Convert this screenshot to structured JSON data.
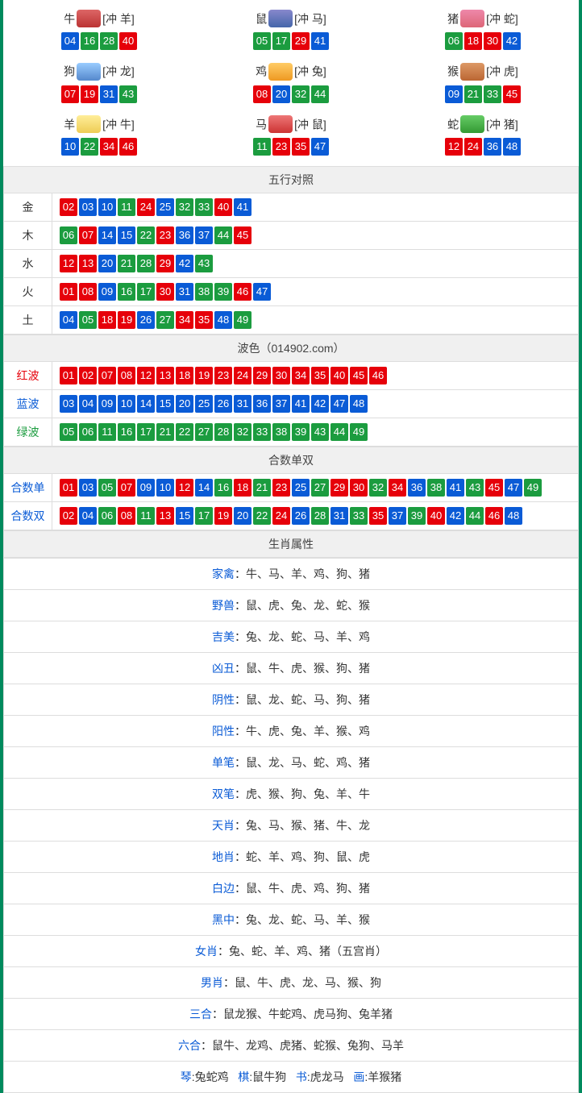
{
  "colors": {
    "accent_border": "#008a5d",
    "red_ball": "#e6000a",
    "blue_ball": "#0a5bd6",
    "green_ball": "#1b9c3f",
    "header_bg": "#f0f0f0",
    "border": "#dddddd",
    "text": "#333333",
    "link_blue": "#0a5bd6"
  },
  "zodiac": [
    {
      "name": "牛",
      "clash": "[冲 羊]",
      "icon_bg": "linear-gradient(#d66,#b33)",
      "balls": [
        [
          "04",
          "b"
        ],
        [
          "16",
          "g"
        ],
        [
          "28",
          "g"
        ],
        [
          "40",
          "r"
        ]
      ]
    },
    {
      "name": "鼠",
      "clash": "[冲 马]",
      "icon_bg": "linear-gradient(#88c,#46a)",
      "balls": [
        [
          "05",
          "g"
        ],
        [
          "17",
          "g"
        ],
        [
          "29",
          "r"
        ],
        [
          "41",
          "b"
        ]
      ]
    },
    {
      "name": "猪",
      "clash": "[冲 蛇]",
      "icon_bg": "linear-gradient(#e8a,#d67)",
      "balls": [
        [
          "06",
          "g"
        ],
        [
          "18",
          "r"
        ],
        [
          "30",
          "r"
        ],
        [
          "42",
          "b"
        ]
      ]
    },
    {
      "name": "狗",
      "clash": "[冲 龙]",
      "icon_bg": "linear-gradient(#9cf,#58c)",
      "balls": [
        [
          "07",
          "r"
        ],
        [
          "19",
          "r"
        ],
        [
          "31",
          "b"
        ],
        [
          "43",
          "g"
        ]
      ]
    },
    {
      "name": "鸡",
      "clash": "[冲 兔]",
      "icon_bg": "linear-gradient(#fc6,#e92)",
      "balls": [
        [
          "08",
          "r"
        ],
        [
          "20",
          "b"
        ],
        [
          "32",
          "g"
        ],
        [
          "44",
          "g"
        ]
      ]
    },
    {
      "name": "猴",
      "clash": "[冲 虎]",
      "icon_bg": "linear-gradient(#d96,#b63)",
      "balls": [
        [
          "09",
          "b"
        ],
        [
          "21",
          "g"
        ],
        [
          "33",
          "g"
        ],
        [
          "45",
          "r"
        ]
      ]
    },
    {
      "name": "羊",
      "clash": "[冲 牛]",
      "icon_bg": "linear-gradient(#fe9,#ec5)",
      "balls": [
        [
          "10",
          "b"
        ],
        [
          "22",
          "g"
        ],
        [
          "34",
          "r"
        ],
        [
          "46",
          "r"
        ]
      ]
    },
    {
      "name": "马",
      "clash": "[冲 鼠]",
      "icon_bg": "linear-gradient(#e77,#c33)",
      "balls": [
        [
          "11",
          "g"
        ],
        [
          "23",
          "r"
        ],
        [
          "35",
          "r"
        ],
        [
          "47",
          "b"
        ]
      ]
    },
    {
      "name": "蛇",
      "clash": "[冲 猪]",
      "icon_bg": "linear-gradient(#6c6,#393)",
      "balls": [
        [
          "12",
          "r"
        ],
        [
          "24",
          "r"
        ],
        [
          "36",
          "b"
        ],
        [
          "48",
          "b"
        ]
      ]
    }
  ],
  "wuxing": {
    "title": "五行对照",
    "rows": [
      {
        "label": "金",
        "label_class": "c-gold",
        "balls": [
          [
            "02",
            "r"
          ],
          [
            "03",
            "b"
          ],
          [
            "10",
            "b"
          ],
          [
            "11",
            "g"
          ],
          [
            "24",
            "r"
          ],
          [
            "25",
            "b"
          ],
          [
            "32",
            "g"
          ],
          [
            "33",
            "g"
          ],
          [
            "40",
            "r"
          ],
          [
            "41",
            "b"
          ]
        ]
      },
      {
        "label": "木",
        "label_class": "c-wood",
        "balls": [
          [
            "06",
            "g"
          ],
          [
            "07",
            "r"
          ],
          [
            "14",
            "b"
          ],
          [
            "15",
            "b"
          ],
          [
            "22",
            "g"
          ],
          [
            "23",
            "r"
          ],
          [
            "36",
            "b"
          ],
          [
            "37",
            "b"
          ],
          [
            "44",
            "g"
          ],
          [
            "45",
            "r"
          ]
        ]
      },
      {
        "label": "水",
        "label_class": "c-water",
        "balls": [
          [
            "12",
            "r"
          ],
          [
            "13",
            "r"
          ],
          [
            "20",
            "b"
          ],
          [
            "21",
            "g"
          ],
          [
            "28",
            "g"
          ],
          [
            "29",
            "r"
          ],
          [
            "42",
            "b"
          ],
          [
            "43",
            "g"
          ]
        ]
      },
      {
        "label": "火",
        "label_class": "c-fire",
        "balls": [
          [
            "01",
            "r"
          ],
          [
            "08",
            "r"
          ],
          [
            "09",
            "b"
          ],
          [
            "16",
            "g"
          ],
          [
            "17",
            "g"
          ],
          [
            "30",
            "r"
          ],
          [
            "31",
            "b"
          ],
          [
            "38",
            "g"
          ],
          [
            "39",
            "g"
          ],
          [
            "46",
            "r"
          ],
          [
            "47",
            "b"
          ]
        ]
      },
      {
        "label": "土",
        "label_class": "c-earth",
        "balls": [
          [
            "04",
            "b"
          ],
          [
            "05",
            "g"
          ],
          [
            "18",
            "r"
          ],
          [
            "19",
            "r"
          ],
          [
            "26",
            "b"
          ],
          [
            "27",
            "g"
          ],
          [
            "34",
            "r"
          ],
          [
            "35",
            "r"
          ],
          [
            "48",
            "b"
          ],
          [
            "49",
            "g"
          ]
        ]
      }
    ]
  },
  "bose": {
    "title": "波色（014902.com）",
    "rows": [
      {
        "label": "红波",
        "label_color": "#e6000a",
        "balls": [
          [
            "01",
            "r"
          ],
          [
            "02",
            "r"
          ],
          [
            "07",
            "r"
          ],
          [
            "08",
            "r"
          ],
          [
            "12",
            "r"
          ],
          [
            "13",
            "r"
          ],
          [
            "18",
            "r"
          ],
          [
            "19",
            "r"
          ],
          [
            "23",
            "r"
          ],
          [
            "24",
            "r"
          ],
          [
            "29",
            "r"
          ],
          [
            "30",
            "r"
          ],
          [
            "34",
            "r"
          ],
          [
            "35",
            "r"
          ],
          [
            "40",
            "r"
          ],
          [
            "45",
            "r"
          ],
          [
            "46",
            "r"
          ]
        ]
      },
      {
        "label": "蓝波",
        "label_color": "#0a5bd6",
        "balls": [
          [
            "03",
            "b"
          ],
          [
            "04",
            "b"
          ],
          [
            "09",
            "b"
          ],
          [
            "10",
            "b"
          ],
          [
            "14",
            "b"
          ],
          [
            "15",
            "b"
          ],
          [
            "20",
            "b"
          ],
          [
            "25",
            "b"
          ],
          [
            "26",
            "b"
          ],
          [
            "31",
            "b"
          ],
          [
            "36",
            "b"
          ],
          [
            "37",
            "b"
          ],
          [
            "41",
            "b"
          ],
          [
            "42",
            "b"
          ],
          [
            "47",
            "b"
          ],
          [
            "48",
            "b"
          ]
        ]
      },
      {
        "label": "绿波",
        "label_color": "#1b9c3f",
        "balls": [
          [
            "05",
            "g"
          ],
          [
            "06",
            "g"
          ],
          [
            "11",
            "g"
          ],
          [
            "16",
            "g"
          ],
          [
            "17",
            "g"
          ],
          [
            "21",
            "g"
          ],
          [
            "22",
            "g"
          ],
          [
            "27",
            "g"
          ],
          [
            "28",
            "g"
          ],
          [
            "32",
            "g"
          ],
          [
            "33",
            "g"
          ],
          [
            "38",
            "g"
          ],
          [
            "39",
            "g"
          ],
          [
            "43",
            "g"
          ],
          [
            "44",
            "g"
          ],
          [
            "49",
            "g"
          ]
        ]
      }
    ]
  },
  "heshu": {
    "title": "合数单双",
    "rows": [
      {
        "label": "合数单",
        "label_color": "#0a5bd6",
        "balls": [
          [
            "01",
            "r"
          ],
          [
            "03",
            "b"
          ],
          [
            "05",
            "g"
          ],
          [
            "07",
            "r"
          ],
          [
            "09",
            "b"
          ],
          [
            "10",
            "b"
          ],
          [
            "12",
            "r"
          ],
          [
            "14",
            "b"
          ],
          [
            "16",
            "g"
          ],
          [
            "18",
            "r"
          ],
          [
            "21",
            "g"
          ],
          [
            "23",
            "r"
          ],
          [
            "25",
            "b"
          ],
          [
            "27",
            "g"
          ],
          [
            "29",
            "r"
          ],
          [
            "30",
            "r"
          ],
          [
            "32",
            "g"
          ],
          [
            "34",
            "r"
          ],
          [
            "36",
            "b"
          ],
          [
            "38",
            "g"
          ],
          [
            "41",
            "b"
          ],
          [
            "43",
            "g"
          ],
          [
            "45",
            "r"
          ],
          [
            "47",
            "b"
          ],
          [
            "49",
            "g"
          ]
        ]
      },
      {
        "label": "合数双",
        "label_color": "#0a5bd6",
        "balls": [
          [
            "02",
            "r"
          ],
          [
            "04",
            "b"
          ],
          [
            "06",
            "g"
          ],
          [
            "08",
            "r"
          ],
          [
            "11",
            "g"
          ],
          [
            "13",
            "r"
          ],
          [
            "15",
            "b"
          ],
          [
            "17",
            "g"
          ],
          [
            "19",
            "r"
          ],
          [
            "20",
            "b"
          ],
          [
            "22",
            "g"
          ],
          [
            "24",
            "r"
          ],
          [
            "26",
            "b"
          ],
          [
            "28",
            "g"
          ],
          [
            "31",
            "b"
          ],
          [
            "33",
            "g"
          ],
          [
            "35",
            "r"
          ],
          [
            "37",
            "b"
          ],
          [
            "39",
            "g"
          ],
          [
            "40",
            "r"
          ],
          [
            "42",
            "b"
          ],
          [
            "44",
            "g"
          ],
          [
            "46",
            "r"
          ],
          [
            "48",
            "b"
          ]
        ]
      }
    ]
  },
  "attrs": {
    "title": "生肖属性",
    "rows": [
      {
        "key": "家禽",
        "val": "：牛、马、羊、鸡、狗、猪"
      },
      {
        "key": "野兽",
        "val": "：鼠、虎、兔、龙、蛇、猴"
      },
      {
        "key": "吉美",
        "val": "：兔、龙、蛇、马、羊、鸡"
      },
      {
        "key": "凶丑",
        "val": "：鼠、牛、虎、猴、狗、猪"
      },
      {
        "key": "阴性",
        "val": "：鼠、龙、蛇、马、狗、猪"
      },
      {
        "key": "阳性",
        "val": "：牛、虎、兔、羊、猴、鸡"
      },
      {
        "key": "单笔",
        "val": "：鼠、龙、马、蛇、鸡、猪"
      },
      {
        "key": "双笔",
        "val": "：虎、猴、狗、兔、羊、牛"
      },
      {
        "key": "天肖",
        "val": "：兔、马、猴、猪、牛、龙"
      },
      {
        "key": "地肖",
        "val": "：蛇、羊、鸡、狗、鼠、虎"
      },
      {
        "key": "白边",
        "val": "：鼠、牛、虎、鸡、狗、猪"
      },
      {
        "key": "黑中",
        "val": "：兔、龙、蛇、马、羊、猴"
      },
      {
        "key": "女肖",
        "val": "：兔、蛇、羊、鸡、猪（五宫肖）"
      },
      {
        "key": "男肖",
        "val": "：鼠、牛、虎、龙、马、猴、狗"
      },
      {
        "key": "三合",
        "val": "：鼠龙猴、牛蛇鸡、虎马狗、兔羊猪"
      },
      {
        "key": "六合",
        "val": "：鼠牛、龙鸡、虎猪、蛇猴、兔狗、马羊"
      }
    ],
    "footer_four": [
      {
        "k": "琴",
        "v": ":兔蛇鸡"
      },
      {
        "k": "棋",
        "v": ":鼠牛狗"
      },
      {
        "k": "书",
        "v": ":虎龙马"
      },
      {
        "k": "画",
        "v": ":羊猴猪"
      }
    ]
  }
}
